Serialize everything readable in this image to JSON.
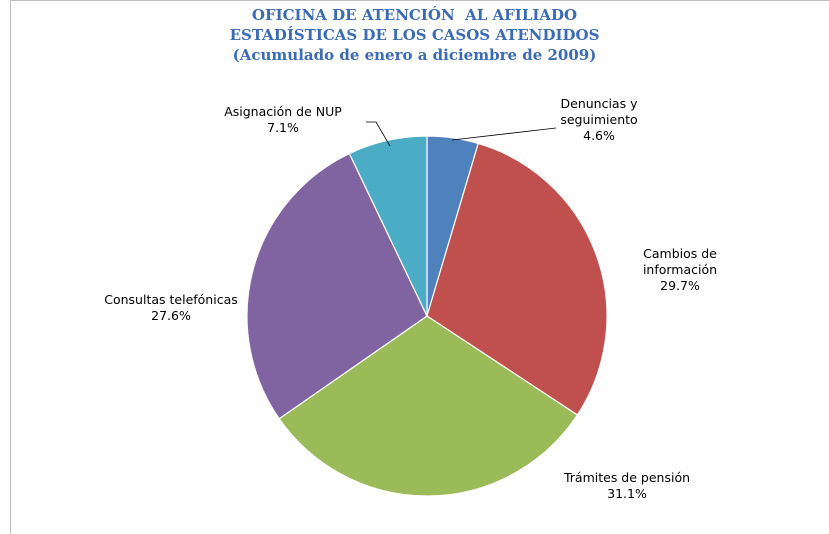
{
  "chart_data": {
    "type": "pie",
    "title": [
      "OFICINA DE ATENCIÓN  AL AFILIADO",
      "ESTADÍSTICAS DE LOS CASOS ATENDIDOS",
      "(Acumulado de enero a diciembre de 2009)"
    ],
    "categories": [
      "Denuncias y seguimiento",
      "Cambios de información",
      "Trámites de pensión",
      "Consultas telefónicas",
      "Asignación de NUP"
    ],
    "values": [
      4.6,
      29.7,
      31.1,
      27.6,
      7.1
    ],
    "value_labels": [
      "4.6%",
      "29.7%",
      "31.1%",
      "27.6%",
      "7.1%"
    ],
    "colors": [
      "#4F81BD",
      "#C0504D",
      "#9BBB59",
      "#8064A2",
      "#4BACC6"
    ]
  }
}
